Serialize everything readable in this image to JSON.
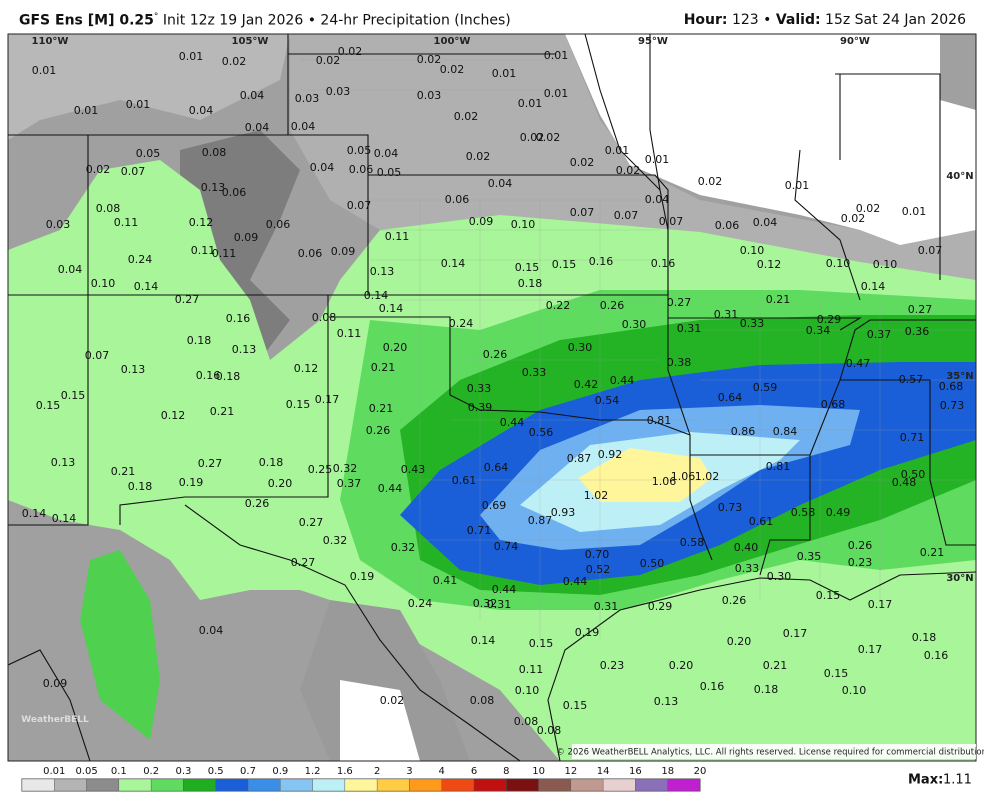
{
  "header": {
    "model": "GFS Ens [M] 0.25",
    "degree": "°",
    "init": "Init 12z 19 Jan 2026",
    "sep": "•",
    "product": "24-hr Precipitation (Inches)",
    "hour_label": "Hour:",
    "hour": "123",
    "sep2": "•",
    "valid_label": "Valid:",
    "valid": "15z Sat 24 Jan 2026"
  },
  "map": {
    "lon_labels": [
      "110°W",
      "105°W",
      "100°W",
      "95°W",
      "90°W"
    ],
    "lat_labels": [
      "40°N",
      "35°N",
      "30°N"
    ],
    "values": [
      "0.01",
      "0.01",
      "0.02",
      "0.02",
      "0.02",
      "0.02",
      "0.02",
      "0.01",
      "0.01",
      "0.01",
      "0.01",
      "0.04",
      "0.04",
      "0.03",
      "0.03",
      "0.03",
      "0.02",
      "0.01",
      "0.01",
      "0.04",
      "0.04",
      "0.05",
      "0.08",
      "0.02",
      "0.07",
      "0.04",
      "0.05",
      "0.04",
      "0.06",
      "0.05",
      "0.02",
      "0.02",
      "0.02",
      "0.02",
      "0.01",
      "0.01",
      "0.02",
      "0.02",
      "0.01",
      "0.13",
      "0.06",
      "0.03",
      "0.08",
      "0.11",
      "0.12",
      "0.06",
      "0.07",
      "0.04",
      "0.06",
      "0.09",
      "0.10",
      "0.07",
      "0.07",
      "0.04",
      "0.07",
      "0.06",
      "0.04",
      "0.02",
      "0.02",
      "0.01",
      "0.09",
      "0.11",
      "0.11",
      "0.24",
      "0.06",
      "0.09",
      "0.11",
      "0.04",
      "0.10",
      "0.14",
      "0.13",
      "0.14",
      "0.15",
      "0.15",
      "0.16",
      "0.16",
      "0.10",
      "0.12",
      "0.10",
      "0.10",
      "0.07",
      "0.18",
      "0.14",
      "0.27",
      "0.14",
      "0.22",
      "0.26",
      "0.27",
      "0.21",
      "0.14",
      "0.27",
      "0.16",
      "0.08",
      "0.24",
      "0.30",
      "0.31",
      "0.31",
      "0.33",
      "0.29",
      "0.34",
      "0.37",
      "0.36",
      "0.18",
      "0.11",
      "0.13",
      "0.20",
      "0.26",
      "0.30",
      "0.07",
      "0.13",
      "0.16",
      "0.18",
      "0.12",
      "0.21",
      "0.33",
      "0.38",
      "0.47",
      "0.42",
      "0.44",
      "0.59",
      "0.57",
      "0.68",
      "0.15",
      "0.15",
      "0.12",
      "0.21",
      "0.15",
      "0.17",
      "0.21",
      "0.33",
      "0.39",
      "0.54",
      "0.64",
      "0.68",
      "0.73",
      "0.44",
      "0.56",
      "0.81",
      "0.86",
      "0.84",
      "0.71",
      "0.26",
      "0.13",
      "0.27",
      "0.18",
      "0.25",
      "0.32",
      "0.87",
      "0.92",
      "0.81",
      "0.43",
      "0.64",
      "0.21",
      "0.18",
      "0.19",
      "0.20",
      "0.37",
      "0.61",
      "1.06",
      "1.06",
      "1.02",
      "0.50",
      "0.48",
      "0.44",
      "1.02",
      "0.26",
      "0.69",
      "0.93",
      "0.73",
      "0.58",
      "0.49",
      "0.14",
      "0.14",
      "0.87",
      "0.61",
      "0.27",
      "0.71",
      "0.32",
      "0.74",
      "0.58",
      "0.40",
      "0.26",
      "0.32",
      "0.70",
      "0.35",
      "0.21",
      "0.27",
      "0.52",
      "0.50",
      "0.33",
      "0.23",
      "0.19",
      "0.30",
      "0.41",
      "0.44",
      "0.44",
      "0.24",
      "0.32",
      "0.31",
      "0.31",
      "0.29",
      "0.26",
      "0.15",
      "0.17",
      "0.04",
      "0.14",
      "0.15",
      "0.19",
      "0.20",
      "0.17",
      "0.18",
      "0.17",
      "0.16",
      "0.11",
      "0.23",
      "0.20",
      "0.21",
      "0.15",
      "0.09",
      "0.16",
      "0.18",
      "0.10",
      "0.10",
      "0.02",
      "0.08",
      "0.13",
      "0.15",
      "0.08",
      "0.08"
    ]
  },
  "colorbar": {
    "ticks": [
      0.01,
      0.05,
      0.1,
      0.2,
      0.3,
      0.5,
      0.7,
      0.9,
      1.2,
      1.6,
      2,
      3,
      4,
      6,
      8,
      10,
      12,
      14,
      16,
      18,
      20
    ],
    "colors": [
      "#e8e8e8",
      "#b4b4b4",
      "#8c8c8c",
      "#a8f59a",
      "#5fdc5f",
      "#1fae1f",
      "#1a5fd8",
      "#3b8ee8",
      "#86c4f2",
      "#bdf0f6",
      "#fff59a",
      "#ffcc44",
      "#ff9a1a",
      "#f04a14",
      "#c01010",
      "#7a1010",
      "#8a5a50",
      "#c09a90",
      "#e8d0d0",
      "#8a70b8",
      "#c020d0"
    ]
  },
  "max": {
    "label": "Max:",
    "value": 1.11
  },
  "copyright": "© 2026 WeatherBELL Analytics, LLC. All rights reserved. License required for commercial distribution.",
  "logo": "WeatherBELL"
}
